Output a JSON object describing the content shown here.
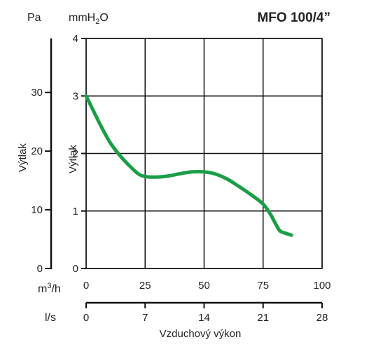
{
  "chart_data": {
    "type": "line",
    "title": "MFO 100/4”",
    "units": {
      "pa": "Pa",
      "mmh2o_base": "mmH",
      "mmh2o_sub": "2",
      "mmh2o_tail": "O",
      "m3h_base": "m",
      "m3h_sup": "3",
      "m3h_tail": "/h",
      "ls": "l/s"
    },
    "xlabel": "Vzduchový výkon",
    "ylabel_left": "Výtlak",
    "ylabel_inner": "Výtlak",
    "x_m3h_ticks": [
      "0",
      "25",
      "50",
      "75",
      "100"
    ],
    "x_ls_ticks": [
      "0",
      "7",
      "14",
      "21",
      "28"
    ],
    "y_pa_ticks": [
      "0",
      "10",
      "20",
      "30"
    ],
    "y_mmh2o_ticks": [
      "0",
      "1",
      "2",
      "3",
      "4"
    ],
    "xlim_m3h": [
      0,
      100
    ],
    "xlim_ls": [
      0,
      28
    ],
    "ylim_mmh2o": [
      0,
      4
    ],
    "ylim_pa": [
      0,
      39.2
    ],
    "grid": true,
    "line_color": "#1a9e47",
    "series": [
      {
        "x": [
          0,
          3,
          6,
          10,
          14,
          18,
          22,
          25,
          30,
          35,
          40,
          45,
          50,
          55,
          60,
          65,
          70,
          75,
          78,
          80,
          82,
          84,
          87
        ],
        "y": [
          3.0,
          2.75,
          2.5,
          2.2,
          1.98,
          1.8,
          1.65,
          1.6,
          1.59,
          1.61,
          1.65,
          1.68,
          1.68,
          1.64,
          1.55,
          1.42,
          1.28,
          1.12,
          0.95,
          0.8,
          0.66,
          0.62,
          0.58
        ]
      }
    ]
  }
}
